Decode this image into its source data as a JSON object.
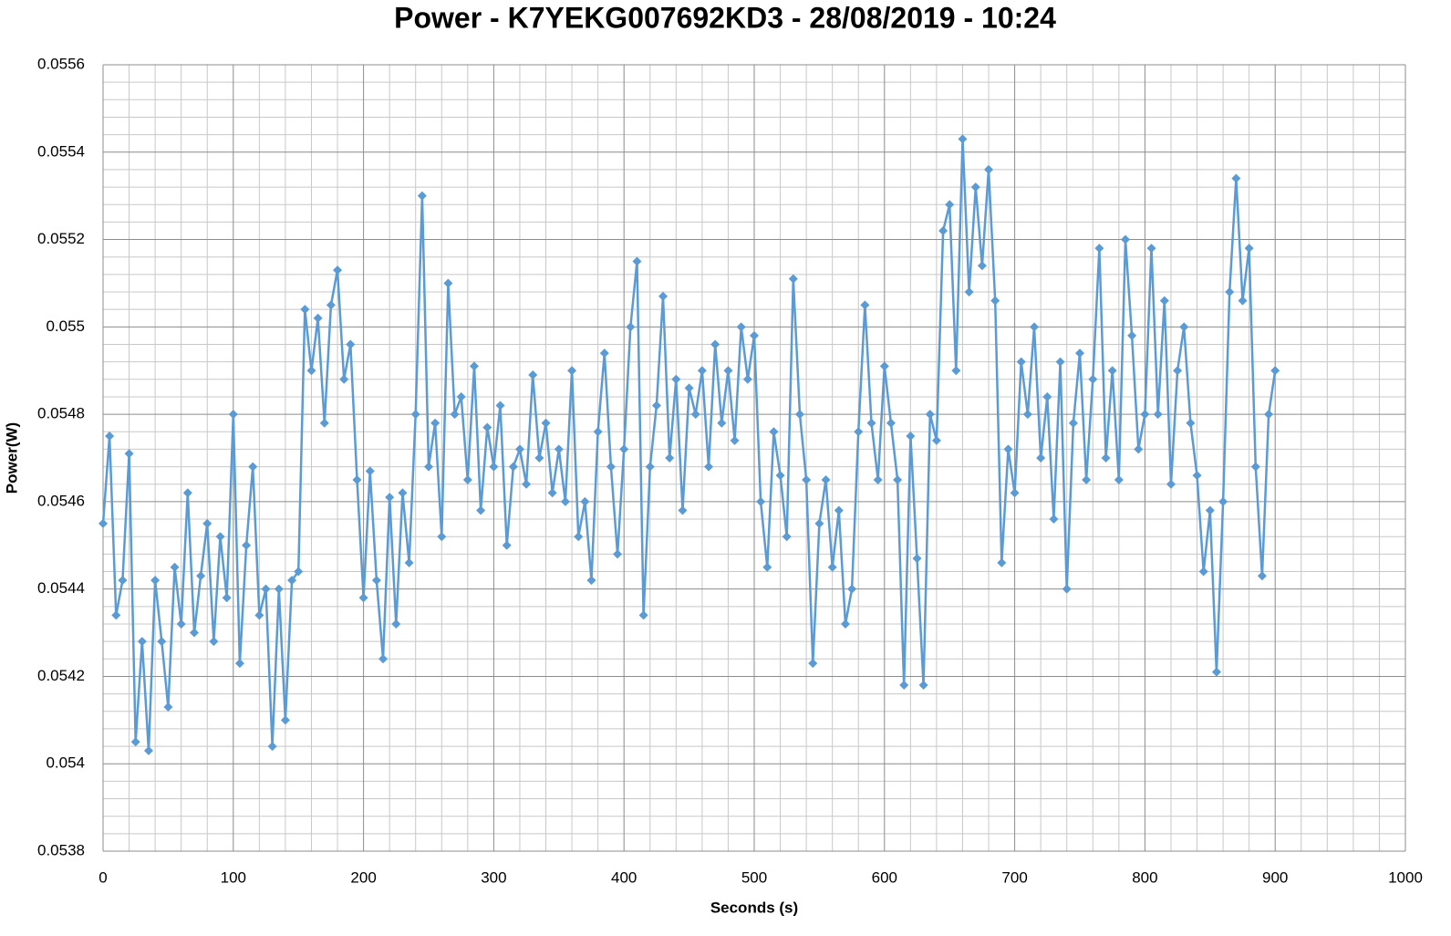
{
  "chart_data": {
    "type": "line",
    "title": "Power - K7YEKG007692KD3 - 28/08/2019 - 10:24",
    "x_label": "Seconds (s)",
    "y_label": "Power(W)",
    "color": "#5b9bd5",
    "grid": true,
    "marker": "diamond",
    "xlim": [
      0,
      1000
    ],
    "xticks": [
      0,
      100,
      200,
      300,
      400,
      500,
      600,
      700,
      800,
      900,
      1000
    ],
    "ylim": [
      0.0538,
      0.0556
    ],
    "yticks": [
      0.0538,
      0.054,
      0.0542,
      0.0544,
      0.0546,
      0.0548,
      0.055,
      0.0552,
      0.0554,
      0.0556
    ],
    "x": [
      0,
      5,
      10,
      15,
      20,
      25,
      30,
      35,
      40,
      45,
      50,
      55,
      60,
      65,
      70,
      75,
      80,
      85,
      90,
      95,
      100,
      105,
      110,
      115,
      120,
      125,
      130,
      135,
      140,
      145,
      150,
      155,
      160,
      165,
      170,
      175,
      180,
      185,
      190,
      195,
      200,
      205,
      210,
      215,
      220,
      225,
      230,
      235,
      240,
      245,
      250,
      255,
      260,
      265,
      270,
      275,
      280,
      285,
      290,
      295,
      300,
      305,
      310,
      315,
      320,
      325,
      330,
      335,
      340,
      345,
      350,
      355,
      360,
      365,
      370,
      375,
      380,
      385,
      390,
      395,
      400,
      405,
      410,
      415,
      420,
      425,
      430,
      435,
      440,
      445,
      450,
      455,
      460,
      465,
      470,
      475,
      480,
      485,
      490,
      495,
      500,
      505,
      510,
      515,
      520,
      525,
      530,
      535,
      540,
      545,
      550,
      555,
      560,
      565,
      570,
      575,
      580,
      585,
      590,
      595,
      600,
      605,
      610,
      615,
      620,
      625,
      630,
      635,
      640,
      645,
      650,
      655,
      660,
      665,
      670,
      675,
      680,
      685,
      690,
      695,
      700,
      705,
      710,
      715,
      720,
      725,
      730,
      735,
      740,
      745,
      750,
      755,
      760,
      765,
      770,
      775,
      780,
      785,
      790,
      795,
      800,
      805,
      810,
      815,
      820,
      825,
      830,
      835,
      840,
      845,
      850,
      855,
      860,
      865,
      870,
      875,
      880,
      885,
      890,
      895,
      900
    ],
    "values": [
      0.05455,
      0.05475,
      0.05434,
      0.05442,
      0.05471,
      0.05405,
      0.05428,
      0.05403,
      0.05442,
      0.05428,
      0.05413,
      0.05445,
      0.05432,
      0.05462,
      0.0543,
      0.05443,
      0.05455,
      0.05428,
      0.05452,
      0.05438,
      0.0548,
      0.05423,
      0.0545,
      0.05468,
      0.05434,
      0.0544,
      0.05404,
      0.0544,
      0.0541,
      0.05442,
      0.05444,
      0.05504,
      0.0549,
      0.05502,
      0.05478,
      0.05505,
      0.05513,
      0.05488,
      0.05496,
      0.05465,
      0.05438,
      0.05467,
      0.05442,
      0.05424,
      0.05461,
      0.05432,
      0.05462,
      0.05446,
      0.0548,
      0.0553,
      0.05468,
      0.05478,
      0.05452,
      0.0551,
      0.0548,
      0.05484,
      0.05465,
      0.05491,
      0.05458,
      0.05477,
      0.05468,
      0.05482,
      0.0545,
      0.05468,
      0.05472,
      0.05464,
      0.05489,
      0.0547,
      0.05478,
      0.05462,
      0.05472,
      0.0546,
      0.0549,
      0.05452,
      0.0546,
      0.05442,
      0.05476,
      0.05494,
      0.05468,
      0.05448,
      0.05472,
      0.055,
      0.05515,
      0.05434,
      0.05468,
      0.05482,
      0.05507,
      0.0547,
      0.05488,
      0.05458,
      0.05486,
      0.0548,
      0.0549,
      0.05468,
      0.05496,
      0.05478,
      0.0549,
      0.05474,
      0.055,
      0.05488,
      0.05498,
      0.0546,
      0.05445,
      0.05476,
      0.05466,
      0.05452,
      0.05511,
      0.0548,
      0.05465,
      0.05423,
      0.05455,
      0.05465,
      0.05445,
      0.05458,
      0.05432,
      0.0544,
      0.05476,
      0.05505,
      0.05478,
      0.05465,
      0.05491,
      0.05478,
      0.05465,
      0.05418,
      0.05475,
      0.05447,
      0.05418,
      0.0548,
      0.05474,
      0.05522,
      0.05528,
      0.0549,
      0.05543,
      0.05508,
      0.05532,
      0.05514,
      0.05536,
      0.05506,
      0.05446,
      0.05472,
      0.05462,
      0.05492,
      0.0548,
      0.055,
      0.0547,
      0.05484,
      0.05456,
      0.05492,
      0.0544,
      0.05478,
      0.05494,
      0.05465,
      0.05488,
      0.05518,
      0.0547,
      0.0549,
      0.05465,
      0.0552,
      0.05498,
      0.05472,
      0.0548,
      0.05518,
      0.0548,
      0.05506,
      0.05464,
      0.0549,
      0.055,
      0.05478,
      0.05466,
      0.05444,
      0.05458,
      0.05421,
      0.0546,
      0.05508,
      0.05534,
      0.05506,
      0.05518,
      0.05468,
      0.05443,
      0.0548,
      0.0549
    ]
  }
}
